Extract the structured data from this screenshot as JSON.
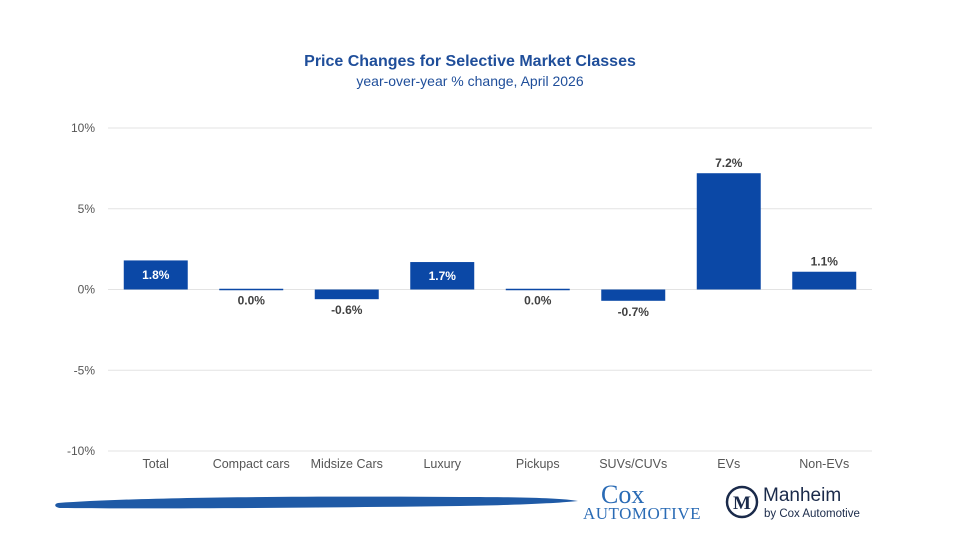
{
  "chart_data": {
    "type": "bar",
    "title": "Price Changes for Selective Market Classes",
    "subtitle": "year-over-year % change, April 2026",
    "categories": [
      "Total",
      "Compact cars",
      "Midsize Cars",
      "Luxury",
      "Pickups",
      "SUVs/CUVs",
      "EVs",
      "Non-EVs"
    ],
    "values": [
      1.8,
      0.0,
      -0.6,
      1.7,
      0.0,
      -0.7,
      7.2,
      1.1
    ],
    "data_labels": [
      "1.8%",
      "0.0%",
      "-0.6%",
      "1.7%",
      "0.0%",
      "-0.7%",
      "7.2%",
      "1.1%"
    ],
    "ylim": [
      -10,
      10
    ],
    "yticks": [
      10,
      5,
      0,
      -5,
      -10
    ],
    "ytick_labels": [
      "10%",
      "5%",
      "0%",
      "-5%",
      "-10%"
    ],
    "grid": true,
    "bar_color": "#0b48a6"
  },
  "branding": {
    "cox_line1": "Cox",
    "cox_line2": "Automotive",
    "manheim_name": "Manheim",
    "manheim_tagline": "by Cox Automotive",
    "manheim_monogram": "M",
    "swoosh_color": "#1f5aa6",
    "cox_color": "#2a6bb5"
  }
}
